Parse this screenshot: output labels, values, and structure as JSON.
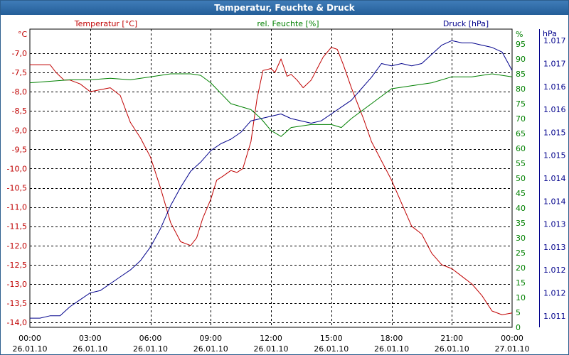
{
  "window": {
    "title": "Temperatur, Feuchte & Druck"
  },
  "chart_data": {
    "type": "line",
    "title": "Temperatur, Feuchte & Druck",
    "colors": {
      "temp": "#c00000",
      "hum": "#008000",
      "press": "#00008b",
      "grid": "#000000",
      "title_bg": "#2a64a0"
    },
    "axes": {
      "temp": {
        "label": "Temperatur [°C]",
        "unit": "°C",
        "min": -14.125,
        "max": -6.375,
        "ticks": [
          "-7,0",
          "-7,5",
          "-8,0",
          "-8,5",
          "-9,0",
          "-9,5",
          "-10,0",
          "-10,5",
          "-11,0",
          "-11,5",
          "-12,0",
          "-12,5",
          "-13,0",
          "-13,5",
          "-14,0"
        ],
        "tick_values": [
          -7.0,
          -7.5,
          -8.0,
          -8.5,
          -9.0,
          -9.5,
          -10.0,
          -10.5,
          -11.0,
          -11.5,
          -12.0,
          -12.5,
          -13.0,
          -13.5,
          -14.0
        ]
      },
      "hum": {
        "label": "rel. Feuchte [%]",
        "unit": "%",
        "min": 0,
        "max": 100,
        "ticks": [
          "95",
          "90",
          "85",
          "80",
          "75",
          "70",
          "65",
          "60",
          "55",
          "50",
          "45",
          "40",
          "35",
          "30",
          "25",
          "20",
          "15",
          "10",
          "5",
          "0"
        ],
        "tick_values": [
          95,
          90,
          85,
          80,
          75,
          70,
          65,
          60,
          55,
          50,
          45,
          40,
          35,
          30,
          25,
          20,
          15,
          10,
          5,
          0
        ]
      },
      "press": {
        "label": "Druck [hPa]",
        "unit": "hPa",
        "min": 1010.75,
        "max": 1017.25,
        "ticks": [
          "1.017",
          "1.017",
          "1.016",
          "1.016",
          "1.015",
          "1.015",
          "1.014",
          "1.014",
          "1.013",
          "1.013",
          "1.012",
          "1.012",
          "1.011"
        ],
        "tick_values": [
          1017.0,
          1016.5,
          1016.0,
          1015.5,
          1015.0,
          1014.5,
          1014.0,
          1013.5,
          1013.0,
          1012.5,
          1012.0,
          1011.5,
          1011.0
        ]
      }
    },
    "x": {
      "min": 0,
      "max": 24,
      "ticks": [
        {
          "h": 0,
          "time": "00:00",
          "date": "26.01.10"
        },
        {
          "h": 3,
          "time": "03:00",
          "date": "26.01.10"
        },
        {
          "h": 6,
          "time": "06:00",
          "date": "26.01.10"
        },
        {
          "h": 9,
          "time": "09:00",
          "date": "26.01.10"
        },
        {
          "h": 12,
          "time": "12:00",
          "date": "26.01.10"
        },
        {
          "h": 15,
          "time": "15:00",
          "date": "26.01.10"
        },
        {
          "h": 18,
          "time": "18:00",
          "date": "26.01.10"
        },
        {
          "h": 21,
          "time": "21:00",
          "date": "26.01.10"
        },
        {
          "h": 24,
          "time": "00:00",
          "date": "27.01.10"
        }
      ]
    },
    "series": [
      {
        "name": "Temperatur [°C]",
        "axis": "temp",
        "x": [
          0,
          0.5,
          1,
          1.3,
          1.7,
          2,
          2.5,
          3,
          3.5,
          4,
          4.5,
          5,
          5.5,
          6,
          6.5,
          7,
          7.5,
          8,
          8.3,
          8.6,
          9,
          9.3,
          9.6,
          10,
          10.3,
          10.6,
          11,
          11.3,
          11.6,
          12,
          12.2,
          12.5,
          12.8,
          13,
          13.3,
          13.6,
          14,
          14.3,
          14.6,
          15,
          15.3,
          15.6,
          16,
          16.3,
          16.6,
          17,
          17.5,
          18,
          18.5,
          19,
          19.5,
          20,
          20.5,
          21,
          21.5,
          22,
          22.5,
          23,
          23.5,
          24
        ],
        "values": [
          -7.3,
          -7.3,
          -7.3,
          -7.5,
          -7.7,
          -7.7,
          -7.8,
          -8.0,
          -7.95,
          -7.9,
          -8.1,
          -8.8,
          -9.2,
          -9.7,
          -10.5,
          -11.4,
          -11.9,
          -12.0,
          -11.8,
          -11.3,
          -10.8,
          -10.3,
          -10.2,
          -10.05,
          -10.1,
          -10.0,
          -9.3,
          -8.2,
          -7.45,
          -7.4,
          -7.5,
          -7.15,
          -7.6,
          -7.55,
          -7.7,
          -7.9,
          -7.7,
          -7.4,
          -7.1,
          -6.85,
          -6.9,
          -7.3,
          -7.9,
          -8.3,
          -8.7,
          -9.3,
          -9.8,
          -10.3,
          -10.9,
          -11.5,
          -11.7,
          -12.2,
          -12.5,
          -12.6,
          -12.8,
          -13.0,
          -13.3,
          -13.7,
          -13.8,
          -13.75
        ]
      },
      {
        "name": "rel. Feuchte [%]",
        "axis": "hum",
        "x": [
          0,
          1,
          2,
          3,
          4,
          5,
          6,
          7,
          8,
          8.5,
          9,
          10,
          11,
          11.5,
          12,
          12.5,
          13,
          14,
          15,
          15.5,
          16,
          17,
          18,
          19,
          20,
          21,
          22,
          23,
          24
        ],
        "values": [
          82,
          82.5,
          83,
          83,
          83.5,
          83,
          84,
          85,
          85,
          84.5,
          82,
          75,
          73,
          70,
          66,
          64,
          67,
          68,
          68,
          67,
          70,
          75,
          80,
          81,
          82,
          84,
          84,
          85,
          84
        ]
      },
      {
        "name": "Druck [hPa]",
        "axis": "press",
        "x": [
          0,
          0.5,
          1,
          1.5,
          2,
          2.5,
          3,
          3.5,
          4,
          4.5,
          5,
          5.5,
          6,
          6.5,
          7,
          7.5,
          8,
          8.5,
          9,
          9.5,
          10,
          10.5,
          11,
          11.5,
          12,
          12.5,
          13,
          13.5,
          14,
          14.5,
          15,
          15.5,
          16,
          16.5,
          17,
          17.5,
          18,
          18.5,
          19,
          19.5,
          20,
          20.5,
          21,
          21.5,
          22,
          22.5,
          23,
          23.5,
          24
        ],
        "values": [
          1010.95,
          1010.95,
          1011.0,
          1011.0,
          1011.2,
          1011.35,
          1011.5,
          1011.55,
          1011.7,
          1011.85,
          1012.0,
          1012.2,
          1012.5,
          1012.9,
          1013.4,
          1013.8,
          1014.15,
          1014.35,
          1014.6,
          1014.75,
          1014.85,
          1015.0,
          1015.25,
          1015.3,
          1015.35,
          1015.4,
          1015.3,
          1015.25,
          1015.2,
          1015.25,
          1015.4,
          1015.55,
          1015.7,
          1015.95,
          1016.2,
          1016.5,
          1016.45,
          1016.5,
          1016.45,
          1016.5,
          1016.7,
          1016.9,
          1017.0,
          1016.95,
          1016.95,
          1016.9,
          1016.85,
          1016.75,
          1016.35
        ]
      }
    ]
  }
}
